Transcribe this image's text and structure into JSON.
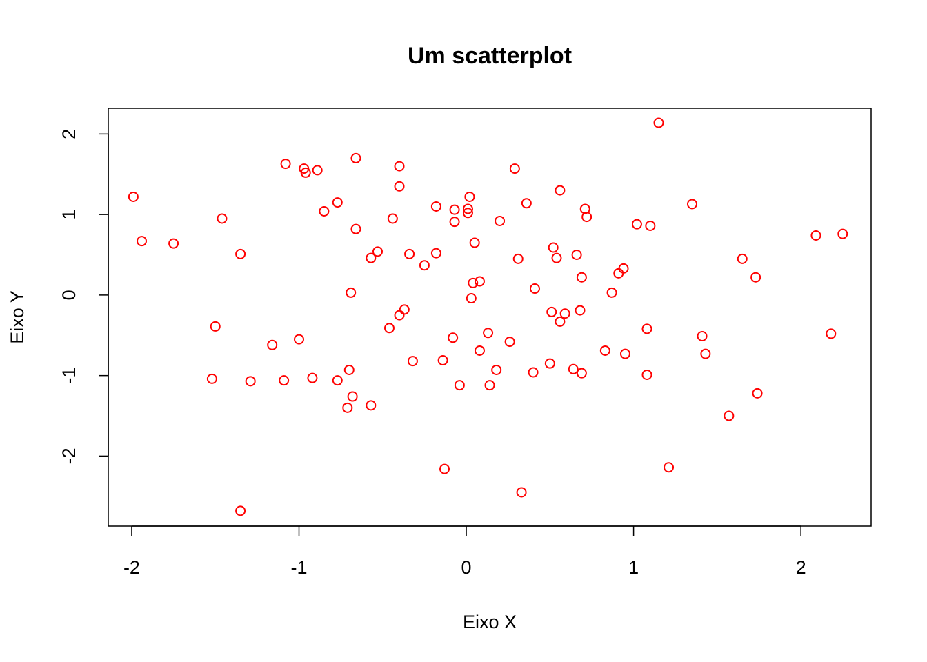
{
  "chart_data": {
    "type": "scatter",
    "title": "Um scatterplot",
    "xlabel": "Eixo X",
    "ylabel": "Eixo Y",
    "xlim": [
      -2.14,
      2.42
    ],
    "ylim": [
      -2.87,
      2.32
    ],
    "xticks": [
      -2,
      -1,
      0,
      1,
      2
    ],
    "yticks": [
      -2,
      -1,
      0,
      1,
      2
    ],
    "grid": false,
    "legend": "none",
    "point_color": "#ff0000",
    "series": [
      {
        "points": [
          [
            -1.99,
            1.22
          ],
          [
            -1.94,
            0.67
          ],
          [
            -1.75,
            0.64
          ],
          [
            -1.52,
            -1.04
          ],
          [
            -1.5,
            -0.39
          ],
          [
            -1.46,
            0.95
          ],
          [
            -1.35,
            0.51
          ],
          [
            -1.35,
            -2.68
          ],
          [
            -1.29,
            -1.07
          ],
          [
            -1.16,
            -0.62
          ],
          [
            -1.09,
            -1.06
          ],
          [
            -1.08,
            1.63
          ],
          [
            -1.0,
            -0.55
          ],
          [
            -0.97,
            1.57
          ],
          [
            -0.96,
            1.52
          ],
          [
            -0.92,
            -1.03
          ],
          [
            -0.89,
            1.55
          ],
          [
            -0.85,
            1.04
          ],
          [
            -0.77,
            1.15
          ],
          [
            -0.77,
            -1.06
          ],
          [
            -0.7,
            -0.93
          ],
          [
            -0.71,
            -1.4
          ],
          [
            -0.69,
            0.03
          ],
          [
            -0.68,
            -1.26
          ],
          [
            -0.66,
            1.7
          ],
          [
            -0.66,
            0.82
          ],
          [
            -0.57,
            -1.37
          ],
          [
            -0.57,
            0.46
          ],
          [
            -0.53,
            0.54
          ],
          [
            -0.46,
            -0.41
          ],
          [
            -0.44,
            0.95
          ],
          [
            -0.4,
            1.6
          ],
          [
            -0.4,
            1.35
          ],
          [
            -0.4,
            -0.25
          ],
          [
            -0.37,
            -0.18
          ],
          [
            -0.34,
            0.51
          ],
          [
            -0.32,
            -0.82
          ],
          [
            -0.25,
            0.37
          ],
          [
            -0.18,
            1.1
          ],
          [
            -0.18,
            0.52
          ],
          [
            -0.14,
            -0.81
          ],
          [
            -0.13,
            -2.16
          ],
          [
            -0.08,
            -0.53
          ],
          [
            -0.07,
            1.06
          ],
          [
            -0.07,
            0.91
          ],
          [
            -0.04,
            -1.12
          ],
          [
            0.01,
            1.07
          ],
          [
            0.01,
            1.02
          ],
          [
            0.02,
            1.22
          ],
          [
            0.03,
            -0.04
          ],
          [
            0.04,
            0.15
          ],
          [
            0.05,
            0.65
          ],
          [
            0.08,
            0.17
          ],
          [
            0.08,
            -0.69
          ],
          [
            0.13,
            -0.47
          ],
          [
            0.14,
            -1.12
          ],
          [
            0.18,
            -0.93
          ],
          [
            0.2,
            0.92
          ],
          [
            0.26,
            -0.58
          ],
          [
            0.29,
            1.57
          ],
          [
            0.31,
            0.45
          ],
          [
            0.33,
            -2.45
          ],
          [
            0.36,
            1.14
          ],
          [
            0.4,
            -0.96
          ],
          [
            0.41,
            0.08
          ],
          [
            0.5,
            -0.85
          ],
          [
            0.51,
            -0.21
          ],
          [
            0.52,
            0.59
          ],
          [
            0.54,
            0.46
          ],
          [
            0.56,
            1.3
          ],
          [
            0.56,
            -0.33
          ],
          [
            0.59,
            -0.23
          ],
          [
            0.64,
            -0.92
          ],
          [
            0.66,
            0.5
          ],
          [
            0.68,
            -0.19
          ],
          [
            0.69,
            -0.97
          ],
          [
            0.69,
            0.22
          ],
          [
            0.71,
            1.07
          ],
          [
            0.72,
            0.97
          ],
          [
            0.83,
            -0.69
          ],
          [
            0.87,
            0.03
          ],
          [
            0.91,
            0.27
          ],
          [
            0.94,
            0.33
          ],
          [
            0.95,
            -0.73
          ],
          [
            1.02,
            0.88
          ],
          [
            1.08,
            -0.42
          ],
          [
            1.08,
            -0.99
          ],
          [
            1.1,
            0.86
          ],
          [
            1.15,
            2.14
          ],
          [
            1.21,
            -2.14
          ],
          [
            1.35,
            1.13
          ],
          [
            1.41,
            -0.51
          ],
          [
            1.43,
            -0.73
          ],
          [
            1.57,
            -1.5
          ],
          [
            1.65,
            0.45
          ],
          [
            1.73,
            0.22
          ],
          [
            1.74,
            -1.22
          ],
          [
            2.09,
            0.74
          ],
          [
            2.18,
            -0.48
          ],
          [
            2.25,
            0.76
          ]
        ]
      }
    ]
  }
}
